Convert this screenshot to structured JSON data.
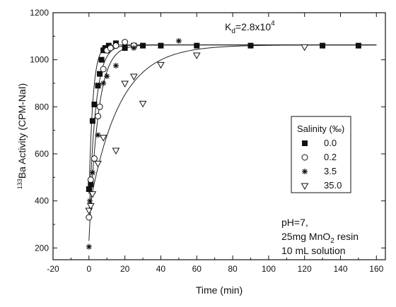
{
  "chart_data": {
    "type": "scatter",
    "title": "",
    "xlabel": "Time (min)",
    "ylabel_super": "133",
    "ylabel_rest": "Ba Activity (CPM-NaI)",
    "xlim": [
      -20,
      165
    ],
    "ylim": [
      150,
      1200
    ],
    "x_ticks": [
      -20,
      0,
      20,
      40,
      60,
      80,
      100,
      120,
      140,
      160
    ],
    "y_ticks": [
      200,
      400,
      600,
      800,
      1000,
      1200
    ],
    "grid": false,
    "kd_label": {
      "base": "K",
      "sub": "d",
      "mid": "=2.8x10",
      "sup": "4"
    },
    "conditions": [
      {
        "text": "pH=7,"
      },
      {
        "pre": "25mg MnO",
        "sub": "2",
        "post": " resin"
      },
      {
        "text": "10 mL solution"
      }
    ],
    "legend": {
      "title": "Salinity (‰)",
      "placement": "right",
      "entries": [
        "0.0",
        "0.2",
        "3.5",
        "35.0"
      ]
    },
    "series": [
      {
        "name": "0.0",
        "marker": "filled-square",
        "points": [
          [
            0,
            450
          ],
          [
            1,
            470
          ],
          [
            2,
            740
          ],
          [
            3,
            810
          ],
          [
            5,
            890
          ],
          [
            6,
            940
          ],
          [
            7,
            1000
          ],
          [
            8,
            1040
          ],
          [
            9,
            1050
          ],
          [
            10,
            1040
          ],
          [
            11,
            1060
          ],
          [
            15,
            1070
          ],
          [
            20,
            1050
          ],
          [
            25,
            1060
          ],
          [
            30,
            1060
          ],
          [
            40,
            1060
          ],
          [
            60,
            1060
          ],
          [
            90,
            1060
          ],
          [
            130,
            1060
          ],
          [
            150,
            1060
          ]
        ],
        "fit": {
          "plateau": 1063,
          "start": 430,
          "k": 0.45
        }
      },
      {
        "name": "0.2",
        "marker": "open-circle",
        "points": [
          [
            0,
            330
          ],
          [
            1,
            490
          ],
          [
            3,
            580
          ],
          [
            5,
            760
          ],
          [
            6,
            800
          ],
          [
            8,
            960
          ],
          [
            10,
            1040
          ],
          [
            12,
            1050
          ],
          [
            15,
            1060
          ],
          [
            20,
            1075
          ],
          [
            25,
            1060
          ]
        ],
        "fit": {
          "plateau": 1063,
          "start": 320,
          "k": 0.27
        }
      },
      {
        "name": "3.5",
        "marker": "asterisk",
        "points": [
          [
            0,
            205
          ],
          [
            0.5,
            400
          ],
          [
            2,
            520
          ],
          [
            5,
            680
          ],
          [
            8,
            900
          ],
          [
            10,
            930
          ],
          [
            15,
            975
          ],
          [
            25,
            1050
          ],
          [
            50,
            1080
          ]
        ],
        "fit": {
          "plateau": 1063,
          "start": 230,
          "k": 0.2
        }
      },
      {
        "name": "35.0",
        "marker": "open-triangle",
        "points": [
          [
            0,
            360
          ],
          [
            1,
            380
          ],
          [
            2,
            430
          ],
          [
            5,
            560
          ],
          [
            8,
            670
          ],
          [
            15,
            615
          ],
          [
            20,
            900
          ],
          [
            25,
            930
          ],
          [
            30,
            815
          ],
          [
            40,
            980
          ],
          [
            60,
            1020
          ],
          [
            120,
            1055
          ]
        ],
        "fit": {
          "plateau": 1063,
          "start": 360,
          "k": 0.06
        }
      }
    ]
  }
}
